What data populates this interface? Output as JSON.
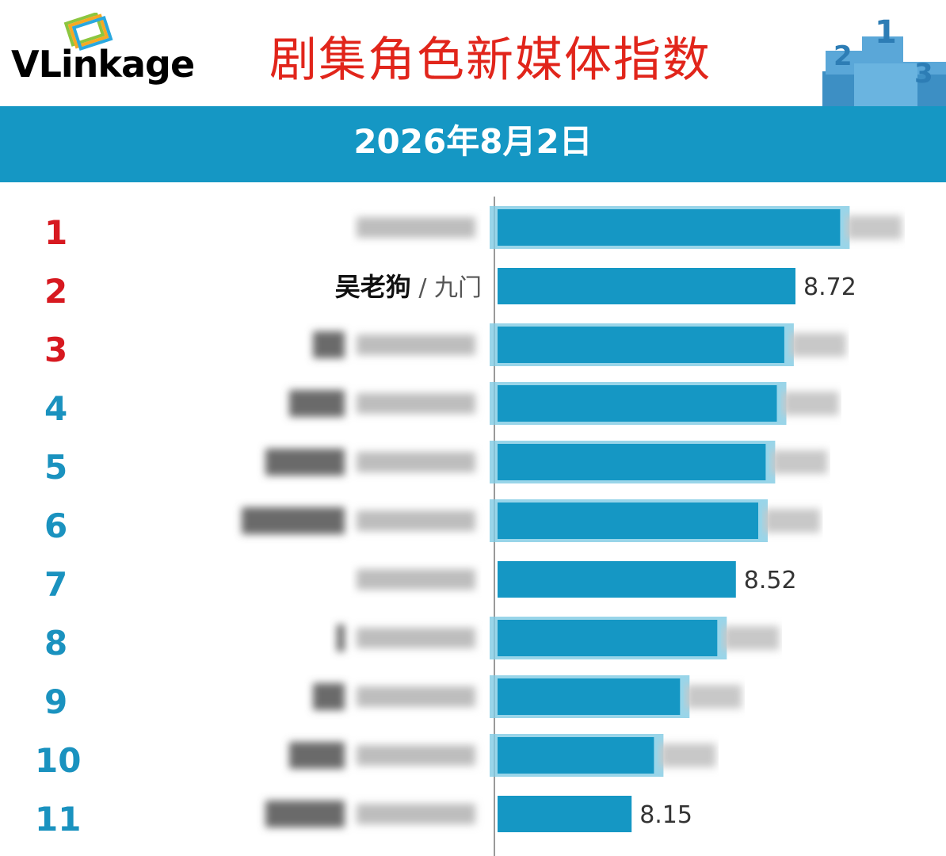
{
  "header": {
    "logo_text": "VLinkage",
    "title": "剧集角色新媒体指数",
    "date": "2026年8月2日",
    "podium_digits": [
      "2",
      "1",
      "3"
    ]
  },
  "colors": {
    "accent": "#1597c4",
    "rank_top": "#d71920",
    "rank_other": "#1a92bf",
    "bar": "#1597c4",
    "bar_blur_edge": "#7fcbe4"
  },
  "chart_data": {
    "type": "bar",
    "orientation": "horizontal",
    "grid": false,
    "ranks": [
      "1",
      "2",
      "3",
      "4",
      "5",
      "6",
      "7",
      "8",
      "9",
      "10",
      "11"
    ],
    "series": [
      {
        "values": [
          null,
          8.72,
          null,
          null,
          null,
          null,
          8.52,
          null,
          null,
          null,
          8.15
        ],
        "relative_lengths": [
          0.92,
          0.8,
          0.77,
          0.75,
          0.72,
          0.7,
          0.64,
          0.59,
          0.49,
          0.42,
          0.36
        ]
      }
    ],
    "labels": [
      null,
      {
        "role": "吴老狗",
        "drama": "九门"
      },
      null,
      null,
      null,
      null,
      null,
      null,
      null,
      null,
      null
    ],
    "value_labels": [
      null,
      "8.72",
      null,
      null,
      null,
      null,
      "8.52",
      null,
      null,
      null,
      "8.15"
    ],
    "blurred_rows": [
      1,
      3,
      4,
      5,
      6,
      7,
      8,
      9,
      10,
      11
    ]
  }
}
